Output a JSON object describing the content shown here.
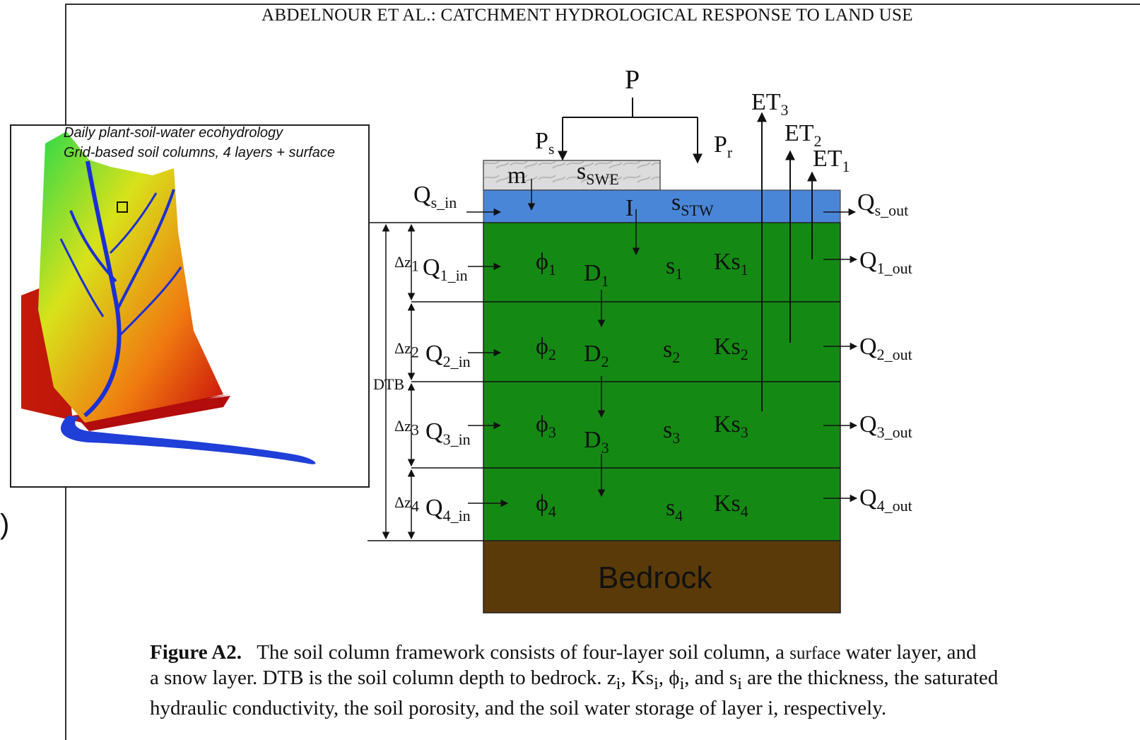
{
  "header": {
    "running_title": "ABDELNOUR ET AL.: CATCHMENT HYDROLOGICAL RESPONSE TO LAND USE"
  },
  "edge_glyph": ")",
  "inset": {
    "caption_line1": "Daily plant-soil-water ecohydrology",
    "caption_line2": "Grid-based soil columns, 4 layers + surface"
  },
  "diagram": {
    "precip": "P",
    "snow_precip": {
      "base": "P",
      "sub": "s"
    },
    "rain_precip": {
      "base": "P",
      "sub": "r"
    },
    "melt": "m",
    "snow_storage": {
      "base": "s",
      "sub": "SWE"
    },
    "infiltration": "I",
    "surface_storage": {
      "base": "s",
      "sub": "STW"
    },
    "surface_inflow": {
      "base": "Q",
      "sub": "s_in"
    },
    "surface_outflow": {
      "base": "Q",
      "sub": "s_out"
    },
    "et": [
      {
        "base": "ET",
        "sub": "3"
      },
      {
        "base": "ET",
        "sub": "2"
      },
      {
        "base": "ET",
        "sub": "1"
      }
    ],
    "dtb": "DTB",
    "bedrock": "Bedrock",
    "layers": [
      {
        "dz": {
          "base": "Δz",
          "sub": "1"
        },
        "qin": {
          "base": "Q",
          "sub": "1_in"
        },
        "phi": {
          "base": "ϕ",
          "sub": "1"
        },
        "d": {
          "base": "D",
          "sub": "1"
        },
        "s": {
          "base": "s",
          "sub": "1"
        },
        "ks": {
          "base": "Ks",
          "sub": "1"
        },
        "qout": {
          "base": "Q",
          "sub": "1_out"
        }
      },
      {
        "dz": {
          "base": "Δz",
          "sub": "2"
        },
        "qin": {
          "base": "Q",
          "sub": "2_in"
        },
        "phi": {
          "base": "ϕ",
          "sub": "2"
        },
        "d": {
          "base": "D",
          "sub": "2"
        },
        "s": {
          "base": "s",
          "sub": "2"
        },
        "ks": {
          "base": "Ks",
          "sub": "2"
        },
        "qout": {
          "base": "Q",
          "sub": "2_out"
        }
      },
      {
        "dz": {
          "base": "Δz",
          "sub": "3"
        },
        "qin": {
          "base": "Q",
          "sub": "3_in"
        },
        "phi": {
          "base": "ϕ",
          "sub": "3"
        },
        "d": {
          "base": "D",
          "sub": "3"
        },
        "s": {
          "base": "s",
          "sub": "3"
        },
        "ks": {
          "base": "Ks",
          "sub": "3"
        },
        "qout": {
          "base": "Q",
          "sub": "3_out"
        }
      },
      {
        "dz": {
          "base": "Δz",
          "sub": "4"
        },
        "qin": {
          "base": "Q",
          "sub": "4_in"
        },
        "phi": {
          "base": "ϕ",
          "sub": "4"
        },
        "s": {
          "base": "s",
          "sub": "4"
        },
        "ks": {
          "base": "Ks",
          "sub": "4"
        },
        "qout": {
          "base": "Q",
          "sub": "4_out"
        }
      }
    ],
    "colors": {
      "snow": "#d9d9d9",
      "surface_water": "#4a86d8",
      "soil": "#148a14",
      "bedrock": "#5a3a08"
    }
  },
  "caption": {
    "label": "Figure A2.",
    "text1": "The soil column framework consists of four-layer soil column, a",
    "small_word": "surface",
    "text2": "water layer, and",
    "line2": "a snow layer. DTB is the soil column depth to bedrock. z",
    "line2_sub1": "i",
    "line2_b": ", Ks",
    "line2_sub2": "i",
    "line2_c": ", ϕ",
    "line2_sub3": "i",
    "line2_d": ", and s",
    "line2_sub4": "i",
    "line2_e": " are the thickness, the saturated",
    "line3": "hydraulic conductivity, the soil porosity, and the soil water storage of layer i, respectively."
  }
}
